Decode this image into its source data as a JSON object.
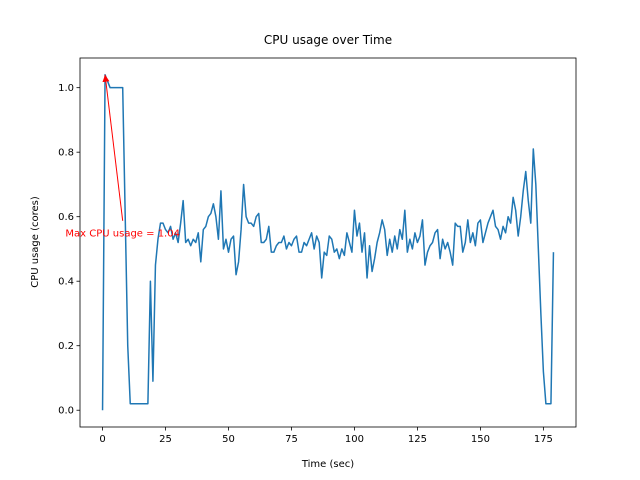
{
  "chart_data": {
    "type": "line",
    "title": "CPU usage over Time",
    "xlabel": "Time (sec)",
    "ylabel": "CPU usage (cores)",
    "color": "#1f77b4",
    "x": [
      0,
      1,
      2,
      3,
      4,
      5,
      6,
      7,
      8,
      9,
      10,
      11,
      12,
      13,
      14,
      15,
      16,
      17,
      18,
      19,
      20,
      21,
      22,
      23,
      24,
      25,
      26,
      27,
      28,
      29,
      30,
      31,
      32,
      33,
      34,
      35,
      36,
      37,
      38,
      39,
      40,
      41,
      42,
      43,
      44,
      45,
      46,
      47,
      48,
      49,
      50,
      51,
      52,
      53,
      54,
      55,
      56,
      57,
      58,
      59,
      60,
      61,
      62,
      63,
      64,
      65,
      66,
      67,
      68,
      69,
      70,
      71,
      72,
      73,
      74,
      75,
      76,
      77,
      78,
      79,
      80,
      81,
      82,
      83,
      84,
      85,
      86,
      87,
      88,
      89,
      90,
      91,
      92,
      93,
      94,
      95,
      96,
      97,
      98,
      99,
      100,
      101,
      102,
      103,
      104,
      105,
      106,
      107,
      108,
      109,
      110,
      111,
      112,
      113,
      114,
      115,
      116,
      117,
      118,
      119,
      120,
      121,
      122,
      123,
      124,
      125,
      126,
      127,
      128,
      129,
      130,
      131,
      132,
      133,
      134,
      135,
      136,
      137,
      138,
      139,
      140,
      141,
      142,
      143,
      144,
      145,
      146,
      147,
      148,
      149,
      150,
      151,
      152,
      153,
      154,
      155,
      156,
      157,
      158,
      159,
      160,
      161,
      162,
      163,
      164,
      165,
      166,
      167,
      168,
      169,
      170,
      171,
      172,
      173,
      174,
      175,
      176,
      177,
      178,
      179
    ],
    "values": [
      0,
      1.04,
      1.02,
      1.0,
      1.0,
      1.0,
      1.0,
      1.0,
      1.0,
      0.6,
      0.2,
      0.02,
      0.02,
      0.02,
      0.02,
      0.02,
      0.02,
      0.02,
      0.02,
      0.4,
      0.09,
      0.45,
      0.53,
      0.58,
      0.58,
      0.56,
      0.55,
      0.57,
      0.53,
      0.55,
      0.52,
      0.58,
      0.65,
      0.52,
      0.53,
      0.51,
      0.53,
      0.52,
      0.55,
      0.46,
      0.56,
      0.57,
      0.6,
      0.61,
      0.64,
      0.6,
      0.53,
      0.68,
      0.5,
      0.53,
      0.49,
      0.53,
      0.54,
      0.42,
      0.46,
      0.56,
      0.7,
      0.6,
      0.58,
      0.58,
      0.57,
      0.6,
      0.61,
      0.52,
      0.52,
      0.53,
      0.57,
      0.49,
      0.49,
      0.51,
      0.52,
      0.52,
      0.54,
      0.5,
      0.52,
      0.51,
      0.53,
      0.54,
      0.49,
      0.49,
      0.52,
      0.51,
      0.53,
      0.55,
      0.5,
      0.54,
      0.52,
      0.41,
      0.49,
      0.48,
      0.54,
      0.53,
      0.49,
      0.5,
      0.47,
      0.5,
      0.48,
      0.55,
      0.52,
      0.49,
      0.62,
      0.54,
      0.58,
      0.49,
      0.55,
      0.41,
      0.51,
      0.43,
      0.47,
      0.52,
      0.55,
      0.59,
      0.56,
      0.48,
      0.53,
      0.49,
      0.54,
      0.5,
      0.56,
      0.53,
      0.62,
      0.49,
      0.53,
      0.5,
      0.55,
      0.52,
      0.54,
      0.59,
      0.45,
      0.49,
      0.51,
      0.52,
      0.55,
      0.56,
      0.47,
      0.53,
      0.5,
      0.52,
      0.49,
      0.45,
      0.58,
      0.57,
      0.57,
      0.49,
      0.52,
      0.59,
      0.52,
      0.55,
      0.51,
      0.58,
      0.59,
      0.52,
      0.55,
      0.58,
      0.6,
      0.62,
      0.57,
      0.56,
      0.53,
      0.57,
      0.55,
      0.6,
      0.58,
      0.66,
      0.62,
      0.54,
      0.6,
      0.68,
      0.74,
      0.65,
      0.58,
      0.81,
      0.7,
      0.5,
      0.3,
      0.12,
      0.02,
      0.02,
      0.02,
      0.49
    ],
    "xlim": [
      -8.95,
      187.95
    ],
    "ylim": [
      -0.052,
      1.092
    ],
    "xticks": [
      0,
      25,
      50,
      75,
      100,
      125,
      150,
      175
    ],
    "yticks": [
      {
        "value": 0,
        "label": "0.0"
      },
      0.2,
      0.4,
      0.6,
      0.8,
      {
        "value": 1,
        "label": "1.0"
      }
    ],
    "annotations": [
      {
        "text": "Max CPU usage = 1.04",
        "xy": [
          1,
          1.04
        ],
        "xytext": [
          8,
          0.55
        ],
        "color": "red"
      }
    ]
  }
}
